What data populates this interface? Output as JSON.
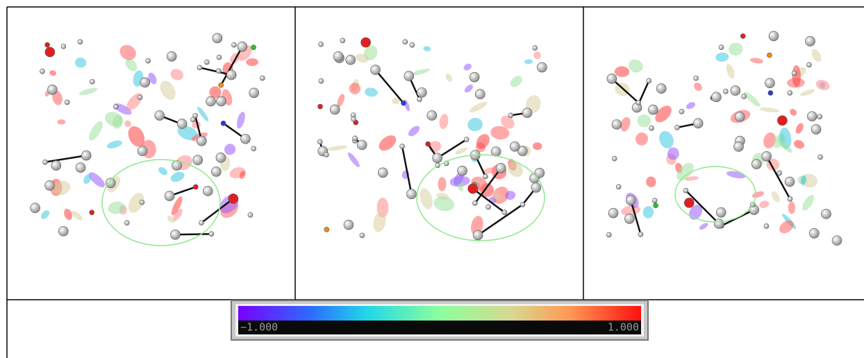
{
  "colorbar": {
    "min_label": "−1.000",
    "max_label": "1.000"
  }
}
